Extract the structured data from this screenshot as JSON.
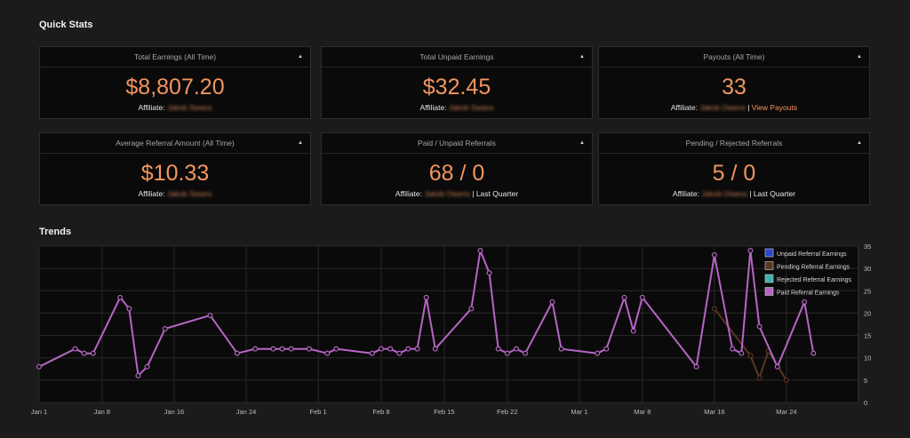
{
  "quick_stats_title": "Quick Stats",
  "trends_title": "Trends",
  "cards": [
    {
      "title": "Total Earnings (All Time)",
      "value": "$8,807.20",
      "sub_label": "Affiliate:",
      "sub_name": "Jakob Swans",
      "sub_sep": "",
      "sub_link": "",
      "sub_tail": ""
    },
    {
      "title": "Total Unpaid Earnings",
      "value": "$32.45",
      "sub_label": "Affiliate:",
      "sub_name": "Jakob Swans",
      "sub_sep": "",
      "sub_link": "",
      "sub_tail": ""
    },
    {
      "title": "Payouts (All Time)",
      "value": "33",
      "sub_label": "Affiliate:",
      "sub_name": "Jakob Owens",
      "sub_sep": " | ",
      "sub_link": "View Payouts",
      "sub_tail": ""
    },
    {
      "title": "Average Referral Amount (All Time)",
      "value": "$10.33",
      "sub_label": "Affiliate:",
      "sub_name": "Jakob Swans",
      "sub_sep": "",
      "sub_link": "",
      "sub_tail": ""
    },
    {
      "title": "Paid / Unpaid Referrals",
      "value": "68 / 0",
      "sub_label": "Affiliate:",
      "sub_name": "Jakob Owens",
      "sub_sep": " | ",
      "sub_link": "",
      "sub_tail": "Last Quarter"
    },
    {
      "title": "Pending / Rejected Referrals",
      "value": "5 / 0",
      "sub_label": "Affiliate:",
      "sub_name": "Jakob Owens",
      "sub_sep": " | ",
      "sub_link": "",
      "sub_tail": "Last Quarter"
    }
  ],
  "colors": {
    "accent": "#f2955f",
    "paid": "#b566c4",
    "pending": "#5a3522",
    "unpaid": "#2b46c7",
    "rejected": "#3bb3b0"
  },
  "chart_data": {
    "type": "line",
    "x_ticks": [
      "Jan 1",
      "Jan 8",
      "Jan 16",
      "Jan 24",
      "Feb 1",
      "Feb 8",
      "Feb 15",
      "Feb 22",
      "Mar 1",
      "Mar 8",
      "Mar 16",
      "Mar 24"
    ],
    "y_ticks": [
      0,
      5,
      10,
      15,
      20,
      25,
      30,
      35
    ],
    "ylim": [
      0,
      35
    ],
    "xlim": [
      "2024-01-01",
      "2024-04-01"
    ],
    "grid": true,
    "legend_position": "top-right",
    "series": [
      {
        "name": "Unpaid Referral Earnings",
        "color": "#2b46c7",
        "points": []
      },
      {
        "name": "Pending Referral Earnings",
        "color": "#5a3522",
        "points": [
          [
            "2024-03-16",
            21
          ],
          [
            "2024-03-20",
            10.5
          ],
          [
            "2024-03-21",
            5.5
          ],
          [
            "2024-03-22",
            11.5
          ],
          [
            "2024-03-24",
            5
          ]
        ]
      },
      {
        "name": "Rejected Referral Earnings",
        "color": "#3bb3b0",
        "points": []
      },
      {
        "name": "Paid Referral Earnings",
        "color": "#b566c4",
        "points": [
          [
            "2024-01-01",
            8
          ],
          [
            "2024-01-05",
            12
          ],
          [
            "2024-01-06",
            11
          ],
          [
            "2024-01-07",
            11
          ],
          [
            "2024-01-10",
            23.5
          ],
          [
            "2024-01-11",
            21
          ],
          [
            "2024-01-12",
            6
          ],
          [
            "2024-01-13",
            8
          ],
          [
            "2024-01-15",
            16.5
          ],
          [
            "2024-01-20",
            19.5
          ],
          [
            "2024-01-23",
            11
          ],
          [
            "2024-01-25",
            12
          ],
          [
            "2024-01-27",
            12
          ],
          [
            "2024-01-28",
            12
          ],
          [
            "2024-01-29",
            12
          ],
          [
            "2024-01-31",
            12
          ],
          [
            "2024-02-02",
            11
          ],
          [
            "2024-02-03",
            12
          ],
          [
            "2024-02-07",
            11
          ],
          [
            "2024-02-08",
            12
          ],
          [
            "2024-02-09",
            12
          ],
          [
            "2024-02-10",
            11
          ],
          [
            "2024-02-11",
            12
          ],
          [
            "2024-02-12",
            12
          ],
          [
            "2024-02-13",
            23.5
          ],
          [
            "2024-02-14",
            12
          ],
          [
            "2024-02-18",
            21
          ],
          [
            "2024-02-19",
            34
          ],
          [
            "2024-02-20",
            29
          ],
          [
            "2024-02-21",
            12
          ],
          [
            "2024-02-22",
            11
          ],
          [
            "2024-02-23",
            12
          ],
          [
            "2024-02-24",
            11
          ],
          [
            "2024-02-27",
            22.5
          ],
          [
            "2024-02-28",
            12
          ],
          [
            "2024-03-03",
            11
          ],
          [
            "2024-03-04",
            12
          ],
          [
            "2024-03-06",
            23.5
          ],
          [
            "2024-03-07",
            16
          ],
          [
            "2024-03-08",
            23.5
          ],
          [
            "2024-03-14",
            8
          ],
          [
            "2024-03-16",
            33
          ],
          [
            "2024-03-18",
            12
          ],
          [
            "2024-03-19",
            11
          ],
          [
            "2024-03-20",
            34
          ],
          [
            "2024-03-21",
            17
          ],
          [
            "2024-03-23",
            8
          ],
          [
            "2024-03-26",
            22.5
          ],
          [
            "2024-03-27",
            11
          ]
        ]
      }
    ]
  }
}
